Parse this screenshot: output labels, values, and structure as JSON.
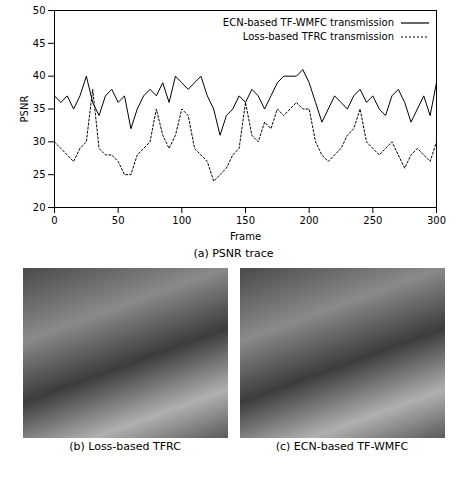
{
  "chart_data": {
    "type": "line",
    "title": "(a) PSNR trace",
    "x_label": "Frame",
    "y_label": "PSNR",
    "x": [
      0,
      5,
      10,
      15,
      20,
      25,
      30,
      35,
      40,
      45,
      50,
      55,
      60,
      65,
      70,
      75,
      80,
      85,
      90,
      95,
      100,
      105,
      110,
      115,
      120,
      125,
      130,
      135,
      140,
      145,
      150,
      155,
      160,
      165,
      170,
      175,
      180,
      185,
      190,
      195,
      200,
      205,
      210,
      215,
      220,
      225,
      230,
      235,
      240,
      245,
      250,
      255,
      260,
      265,
      270,
      275,
      280,
      285,
      290,
      295,
      300
    ],
    "series": [
      {
        "name": "ECN-based TF-WMFC transmission",
        "color": "#000000",
        "line_style": "solid",
        "values": [
          37,
          36,
          37,
          35,
          37,
          40,
          36,
          34,
          37,
          38,
          36,
          37,
          32,
          35,
          37,
          38,
          37,
          39,
          36,
          40,
          39,
          38,
          39,
          40,
          37,
          35,
          31,
          34,
          35,
          37,
          36,
          38,
          37,
          35,
          37,
          39,
          40,
          40,
          40,
          41,
          39,
          36,
          33,
          35,
          37,
          36,
          35,
          37,
          38,
          36,
          37,
          35,
          34,
          37,
          38,
          36,
          33,
          35,
          37,
          34,
          39
        ]
      },
      {
        "name": "Loss-based TFRC transmission",
        "color": "#000000",
        "line_style": "dotted",
        "values": [
          30,
          29,
          28,
          27,
          29,
          30,
          38,
          29,
          28,
          28,
          27,
          25,
          25,
          28,
          29,
          30,
          35,
          31,
          29,
          31,
          35,
          34,
          29,
          28,
          27,
          24,
          25,
          26,
          28,
          29,
          36,
          31,
          30,
          33,
          32,
          35,
          34,
          35,
          36,
          35,
          35,
          30,
          28,
          27,
          28,
          29,
          31,
          32,
          35,
          30,
          29,
          28,
          29,
          30,
          28,
          26,
          28,
          29,
          28,
          27,
          30
        ]
      }
    ],
    "xlim": [
      0,
      300
    ],
    "xticks": [
      0,
      50,
      100,
      150,
      200,
      250,
      300
    ],
    "ylim": [
      20,
      50
    ],
    "yticks": [
      20,
      25,
      30,
      35,
      40,
      45,
      50
    ],
    "legend": "upper right",
    "grid": false
  },
  "images": [
    {
      "caption": "(b) Loss-based TFRC"
    },
    {
      "caption": "(c) ECN-based TF-WMFC"
    }
  ]
}
